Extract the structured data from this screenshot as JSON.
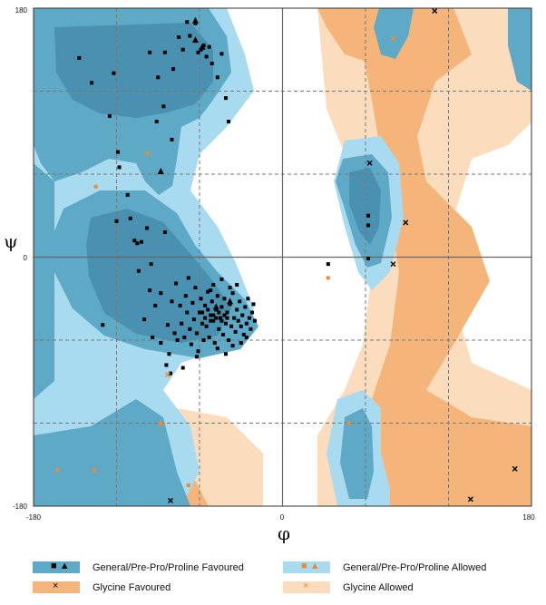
{
  "chart_data": {
    "type": "scatter",
    "title": "",
    "xlabel": "φ",
    "ylabel": "ψ",
    "xlim": [
      -180,
      180
    ],
    "ylim": [
      -180,
      180
    ],
    "x_tick_labels": [
      "-180",
      "0",
      "180"
    ],
    "y_tick_labels": [
      "180",
      "0",
      "-180"
    ],
    "grid": true,
    "legend_position": "bottom",
    "region_colors": {
      "general_favoured": "#5ea9c6",
      "general_favoured_core": "#4a91b1",
      "general_allowed": "#a8dbef",
      "glycine_favoured": "#f5b57a",
      "glycine_allowed": "#fbdcbc"
    },
    "legend": [
      {
        "label": "General/Pre-Pro/Proline Favoured",
        "color": "#5ea9c6",
        "markers": "■ ▲"
      },
      {
        "label": "General/Pre-Pro/Proline Allowed",
        "color": "#a8dbef",
        "markers": "■ ▲"
      },
      {
        "label": "Glycine Favoured",
        "color": "#f5b57a",
        "markers": "×"
      },
      {
        "label": "Glycine Allowed",
        "color": "#fbdcbc",
        "markers": "×"
      }
    ],
    "series": [
      {
        "name": "General/Pre-Pro/Proline Favoured",
        "marker": "square",
        "color": "#000000",
        "points": [
          [
            -147,
            144
          ],
          [
            -138,
            126
          ],
          [
            -130,
            -49
          ],
          [
            -125,
            102
          ],
          [
            -122,
            133
          ],
          [
            -118,
            65
          ],
          [
            -120,
            26
          ],
          [
            -110,
            28
          ],
          [
            -107,
            12
          ],
          [
            -104,
            -10
          ],
          [
            -102,
            11
          ],
          [
            -100,
            -45
          ],
          [
            -98,
            21
          ],
          [
            -96,
            -24
          ],
          [
            -94,
            -58
          ],
          [
            -92,
            -35
          ],
          [
            -90,
            130
          ],
          [
            -88,
            -26
          ],
          [
            -86,
            109
          ],
          [
            -85,
            18
          ],
          [
            -83,
            -49
          ],
          [
            -82,
            -70
          ],
          [
            -80,
            -32
          ],
          [
            -78,
            -55
          ],
          [
            -77,
            -19
          ],
          [
            -76,
            -60
          ],
          [
            -74,
            -35
          ],
          [
            -73,
            -48
          ],
          [
            -71,
            -58
          ],
          [
            -70,
            -28
          ],
          [
            -69,
            -40
          ],
          [
            -68,
            -15
          ],
          [
            -67,
            -52
          ],
          [
            -66,
            -63
          ],
          [
            -65,
            -33
          ],
          [
            -64,
            -45
          ],
          [
            -63,
            -22
          ],
          [
            -62,
            -55
          ],
          [
            -61,
            -68
          ],
          [
            -60,
            -40
          ],
          [
            -59,
            -30
          ],
          [
            -58,
            -48
          ],
          [
            -57,
            -60
          ],
          [
            -56,
            -35
          ],
          [
            -55,
            -50
          ],
          [
            -54,
            -25
          ],
          [
            -53,
            -58
          ],
          [
            -52,
            -42
          ],
          [
            -51,
            -32
          ],
          [
            -50,
            -46
          ],
          [
            -49,
            -62
          ],
          [
            -48,
            -38
          ],
          [
            -47,
            -28
          ],
          [
            -46,
            -52
          ],
          [
            -45,
            -44
          ],
          [
            -44,
            -36
          ],
          [
            -43,
            -56
          ],
          [
            -42,
            -30
          ],
          [
            -41,
            -48
          ],
          [
            -40,
            -40
          ],
          [
            -39,
            -60
          ],
          [
            -38,
            -34
          ],
          [
            -37,
            -50
          ],
          [
            -36,
            -26
          ],
          [
            -35,
            -44
          ],
          [
            -34,
            -54
          ],
          [
            -33,
            -38
          ],
          [
            -32,
            -46
          ],
          [
            -31,
            -32
          ],
          [
            -30,
            -50
          ],
          [
            -29,
            -42
          ],
          [
            -28,
            -56
          ],
          [
            -27,
            -36
          ],
          [
            -26,
            -48
          ],
          [
            -25,
            -30
          ],
          [
            -24,
            -44
          ],
          [
            -23,
            -52
          ],
          [
            -22,
            -40
          ],
          [
            -21,
            -34
          ],
          [
            -20,
            -46
          ],
          [
            -52,
            -24
          ],
          [
            -50,
            -20
          ],
          [
            -47,
            -66
          ],
          [
            -44,
            -16
          ],
          [
            -41,
            -70
          ],
          [
            -38,
            -22
          ],
          [
            -36,
            -64
          ],
          [
            -33,
            -20
          ],
          [
            -30,
            -62
          ],
          [
            -26,
            -58
          ],
          [
            -58,
            -40
          ],
          [
            -56,
            -44
          ],
          [
            -54,
            -38
          ],
          [
            -52,
            -46
          ],
          [
            -50,
            -42
          ],
          [
            -48,
            -44
          ],
          [
            -46,
            -40
          ],
          [
            -44,
            -46
          ],
          [
            -42,
            -42
          ],
          [
            -40,
            -44
          ],
          [
            -79,
            136
          ],
          [
            -75,
            159
          ],
          [
            -72,
            150
          ],
          [
            -69,
            170
          ],
          [
            -67,
            160
          ],
          [
            -63,
            169
          ],
          [
            -61,
            148
          ],
          [
            -59,
            150
          ],
          [
            -57,
            153
          ],
          [
            -55,
            145
          ],
          [
            -53,
            152
          ],
          [
            -51,
            140
          ],
          [
            -47,
            130
          ],
          [
            -44,
            147
          ],
          [
            -41,
            115
          ],
          [
            -39,
            98
          ],
          [
            -96,
            148
          ],
          [
            -91,
            98
          ],
          [
            -85,
            148
          ],
          [
            -80,
            85
          ],
          [
            -119,
            76
          ],
          [
            -105,
            10
          ],
          [
            -112,
            45
          ],
          [
            -95,
            -5
          ],
          [
            -88,
            -62
          ],
          [
            -84,
            -78
          ],
          [
            -81,
            -84
          ],
          [
            -72,
            -80
          ],
          [
            -62,
            -72
          ],
          [
            62,
            30
          ],
          [
            62,
            23
          ],
          [
            62,
            -1
          ],
          [
            33,
            -5
          ]
        ]
      },
      {
        "name": "General/Pre-Pro/Proline Favoured",
        "marker": "triangle",
        "color": "#000000",
        "points": [
          [
            -63,
            171
          ],
          [
            -63,
            157
          ],
          [
            -58,
            152
          ],
          [
            -48,
            -36
          ],
          [
            -38,
            -32
          ],
          [
            -88,
            62
          ]
        ]
      },
      {
        "name": "General/Pre-Pro/Proline Allowed",
        "marker": "square",
        "color": "#f08a2e",
        "points": [
          [
            -135,
            51
          ],
          [
            -163,
            -154
          ],
          [
            -68,
            -165
          ],
          [
            33,
            -15
          ],
          [
            48,
            -120
          ]
        ]
      },
      {
        "name": "General/Pre-Pro/Proline Allowed",
        "marker": "triangle",
        "color": "#f08a2e",
        "points": [
          [
            -88,
            -120
          ]
        ]
      },
      {
        "name": "Glycine Favoured",
        "marker": "cross",
        "color": "#000000",
        "points": [
          [
            63,
            68
          ],
          [
            89,
            25
          ],
          [
            80,
            -5
          ],
          [
            136,
            -175
          ],
          [
            168,
            -153
          ],
          [
            -81,
            -176
          ],
          [
            110,
            178
          ]
        ]
      },
      {
        "name": "Glycine Allowed",
        "marker": "cross",
        "color": "#f08a2e",
        "points": [
          [
            -98,
            75
          ],
          [
            80,
            158
          ],
          [
            -83,
            -85
          ],
          [
            -136,
            -154
          ]
        ]
      }
    ]
  }
}
